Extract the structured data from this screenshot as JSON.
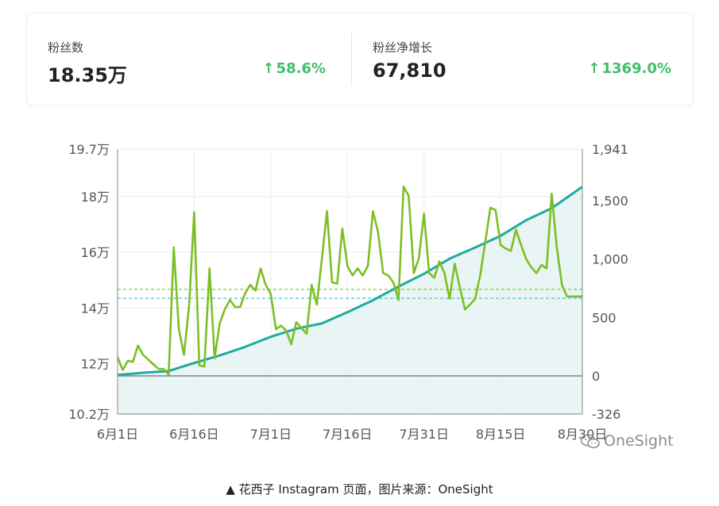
{
  "stats": [
    {
      "label": "粉丝数",
      "value": "18.35万",
      "change": "58.6%",
      "arrow": "↑"
    },
    {
      "label": "粉丝净增长",
      "value": "67,810",
      "change": "1369.0%",
      "arrow": "↑"
    }
  ],
  "colors": {
    "accent_green": "#3fbf6a",
    "followers_line": "#20aa9e",
    "net_growth_line": "#7cbf25",
    "area_fill": "#e2f2f2"
  },
  "chart_data": {
    "type": "line",
    "x_tick_labels": [
      "6月1日",
      "6月16日",
      "7月1日",
      "7月16日",
      "7月31日",
      "8月15日",
      "8月30日"
    ],
    "y_left_tick_labels": [
      "19.7万",
      "18万",
      "16万",
      "14万",
      "12万",
      "10.2万"
    ],
    "y_right_tick_labels": [
      "1,941",
      "1,500",
      "1,000",
      "500",
      "0",
      "-326"
    ],
    "y_left_range": [
      102000,
      197000
    ],
    "y_right_range": [
      -326,
      1941
    ],
    "x_range": [
      0,
      91
    ],
    "grid": true,
    "reference_lines": [
      {
        "axis": "right",
        "value": 740,
        "color": "#8fcf45"
      },
      {
        "axis": "left",
        "value": 143500,
        "color": "#5cc8c8"
      }
    ],
    "series": [
      {
        "axis": "left",
        "color": "#20aa9e",
        "area": true,
        "x": [
          0,
          5,
          10,
          12,
          15,
          20,
          25,
          30,
          35,
          40,
          45,
          50,
          55,
          60,
          65,
          70,
          75,
          80,
          85,
          91
        ],
        "values": [
          116000,
          116800,
          117400,
          118600,
          120300,
          123000,
          126100,
          129700,
          132600,
          134500,
          138500,
          142800,
          147700,
          152300,
          157700,
          161700,
          165900,
          171500,
          175800,
          183500
        ]
      },
      {
        "axis": "right",
        "color": "#7cbf25",
        "x": [
          0,
          1,
          2,
          3,
          4,
          5,
          6,
          7,
          8,
          9,
          10,
          11,
          12,
          13,
          14,
          15,
          16,
          17,
          18,
          19,
          20,
          21,
          22,
          23,
          24,
          25,
          26,
          27,
          28,
          29,
          30,
          31,
          32,
          33,
          34,
          35,
          36,
          37,
          38,
          39,
          40,
          41,
          42,
          43,
          44,
          45,
          46,
          47,
          48,
          49,
          50,
          51,
          52,
          53,
          54,
          55,
          56,
          57,
          58,
          59,
          60,
          61,
          62,
          63,
          64,
          65,
          66,
          67,
          68,
          69,
          70,
          71,
          72,
          73,
          74,
          75,
          76,
          77,
          78,
          79,
          80,
          81,
          82,
          83,
          84,
          85,
          86,
          87,
          88,
          89,
          90,
          91
        ],
        "values": [
          160,
          50,
          130,
          120,
          260,
          180,
          140,
          100,
          60,
          60,
          10,
          1100,
          400,
          180,
          600,
          1400,
          90,
          80,
          920,
          150,
          450,
          570,
          650,
          590,
          590,
          710,
          780,
          730,
          920,
          780,
          700,
          400,
          430,
          390,
          270,
          460,
          410,
          360,
          780,
          610,
          1000,
          1410,
          800,
          790,
          1260,
          940,
          860,
          920,
          860,
          940,
          1410,
          1230,
          880,
          860,
          800,
          650,
          1620,
          1540,
          880,
          1010,
          1390,
          880,
          840,
          980,
          880,
          660,
          960,
          760,
          570,
          610,
          660,
          860,
          1150,
          1440,
          1420,
          1120,
          1090,
          1070,
          1250,
          1120,
          1000,
          930,
          880,
          950,
          920,
          1560,
          1100,
          780,
          680,
          680,
          680,
          680
        ]
      }
    ]
  },
  "watermark": {
    "text": "OneSight"
  },
  "caption": "▲ 花西子 Instagram 页面，图片来源：OneSight"
}
